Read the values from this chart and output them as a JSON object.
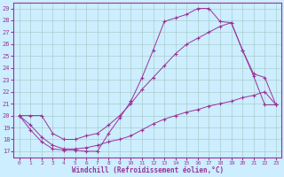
{
  "xlabel": "Windchill (Refroidissement éolien,°C)",
  "bg_color": "#cceeff",
  "grid_color": "#aacccc",
  "line_color": "#993399",
  "xlim": [
    -0.5,
    23.5
  ],
  "ylim": [
    16.5,
    29.5
  ],
  "yticks": [
    17,
    18,
    19,
    20,
    21,
    22,
    23,
    24,
    25,
    26,
    27,
    28,
    29
  ],
  "xticks": [
    0,
    1,
    2,
    3,
    4,
    5,
    6,
    7,
    8,
    9,
    10,
    11,
    12,
    13,
    14,
    15,
    16,
    17,
    18,
    19,
    20,
    21,
    22,
    23
  ],
  "line1_x": [
    0,
    1,
    2,
    3,
    4,
    5,
    6,
    7,
    8,
    9,
    10,
    11,
    12,
    13,
    14,
    15,
    16,
    17,
    18,
    19,
    20,
    21,
    22,
    23
  ],
  "line1_y": [
    20.0,
    18.8,
    17.8,
    17.2,
    17.1,
    17.1,
    17.0,
    17.0,
    18.5,
    19.8,
    21.2,
    23.2,
    25.5,
    27.9,
    28.2,
    28.5,
    29.0,
    29.0,
    27.9,
    27.8,
    25.5,
    23.3,
    20.9,
    20.9
  ],
  "line2_x": [
    0,
    1,
    2,
    3,
    4,
    5,
    6,
    7,
    8,
    9,
    10,
    11,
    12,
    13,
    14,
    15,
    16,
    17,
    18,
    19,
    20,
    21,
    22,
    23
  ],
  "line2_y": [
    20.0,
    20.0,
    20.0,
    18.5,
    18.0,
    18.0,
    18.3,
    18.5,
    19.2,
    20.0,
    21.0,
    22.2,
    23.2,
    24.2,
    25.2,
    26.0,
    26.5,
    27.0,
    27.5,
    27.8,
    25.5,
    23.5,
    23.2,
    20.9
  ],
  "line3_x": [
    0,
    1,
    2,
    3,
    4,
    5,
    6,
    7,
    8,
    9,
    10,
    11,
    12,
    13,
    14,
    15,
    16,
    17,
    18,
    19,
    20,
    21,
    22,
    23
  ],
  "line3_y": [
    20.0,
    19.2,
    18.2,
    17.5,
    17.2,
    17.2,
    17.3,
    17.5,
    17.8,
    18.0,
    18.3,
    18.8,
    19.3,
    19.7,
    20.0,
    20.3,
    20.5,
    20.8,
    21.0,
    21.2,
    21.5,
    21.7,
    22.0,
    20.9
  ]
}
